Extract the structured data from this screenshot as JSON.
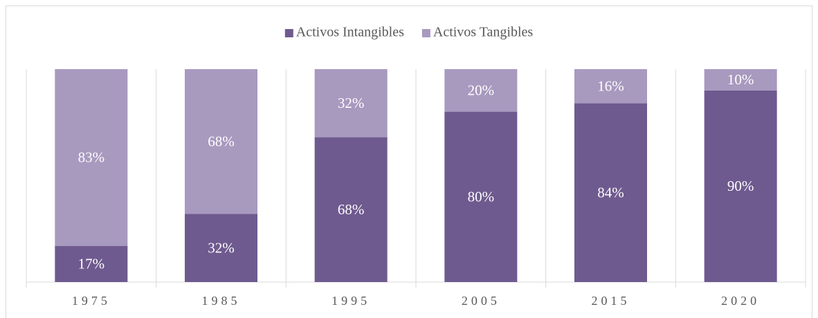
{
  "chart_data": {
    "type": "stacked_bar",
    "categories": [
      "1975",
      "1985",
      "1995",
      "2005",
      "2015",
      "2020"
    ],
    "series": [
      {
        "name": "Activos Intangibles",
        "color": "#6f5a8f",
        "values": [
          17,
          32,
          68,
          80,
          84,
          90
        ],
        "value_labels": [
          "17%",
          "32%",
          "68%",
          "80%",
          "84%",
          "90%"
        ]
      },
      {
        "name": "Activos Tangibles",
        "color": "#a899bf",
        "values": [
          83,
          68,
          32,
          20,
          16,
          10
        ],
        "value_labels": [
          "83%",
          "68%",
          "32%",
          "20%",
          "16%",
          "10%"
        ]
      }
    ],
    "ylim": [
      0,
      100
    ],
    "legend": "top"
  }
}
